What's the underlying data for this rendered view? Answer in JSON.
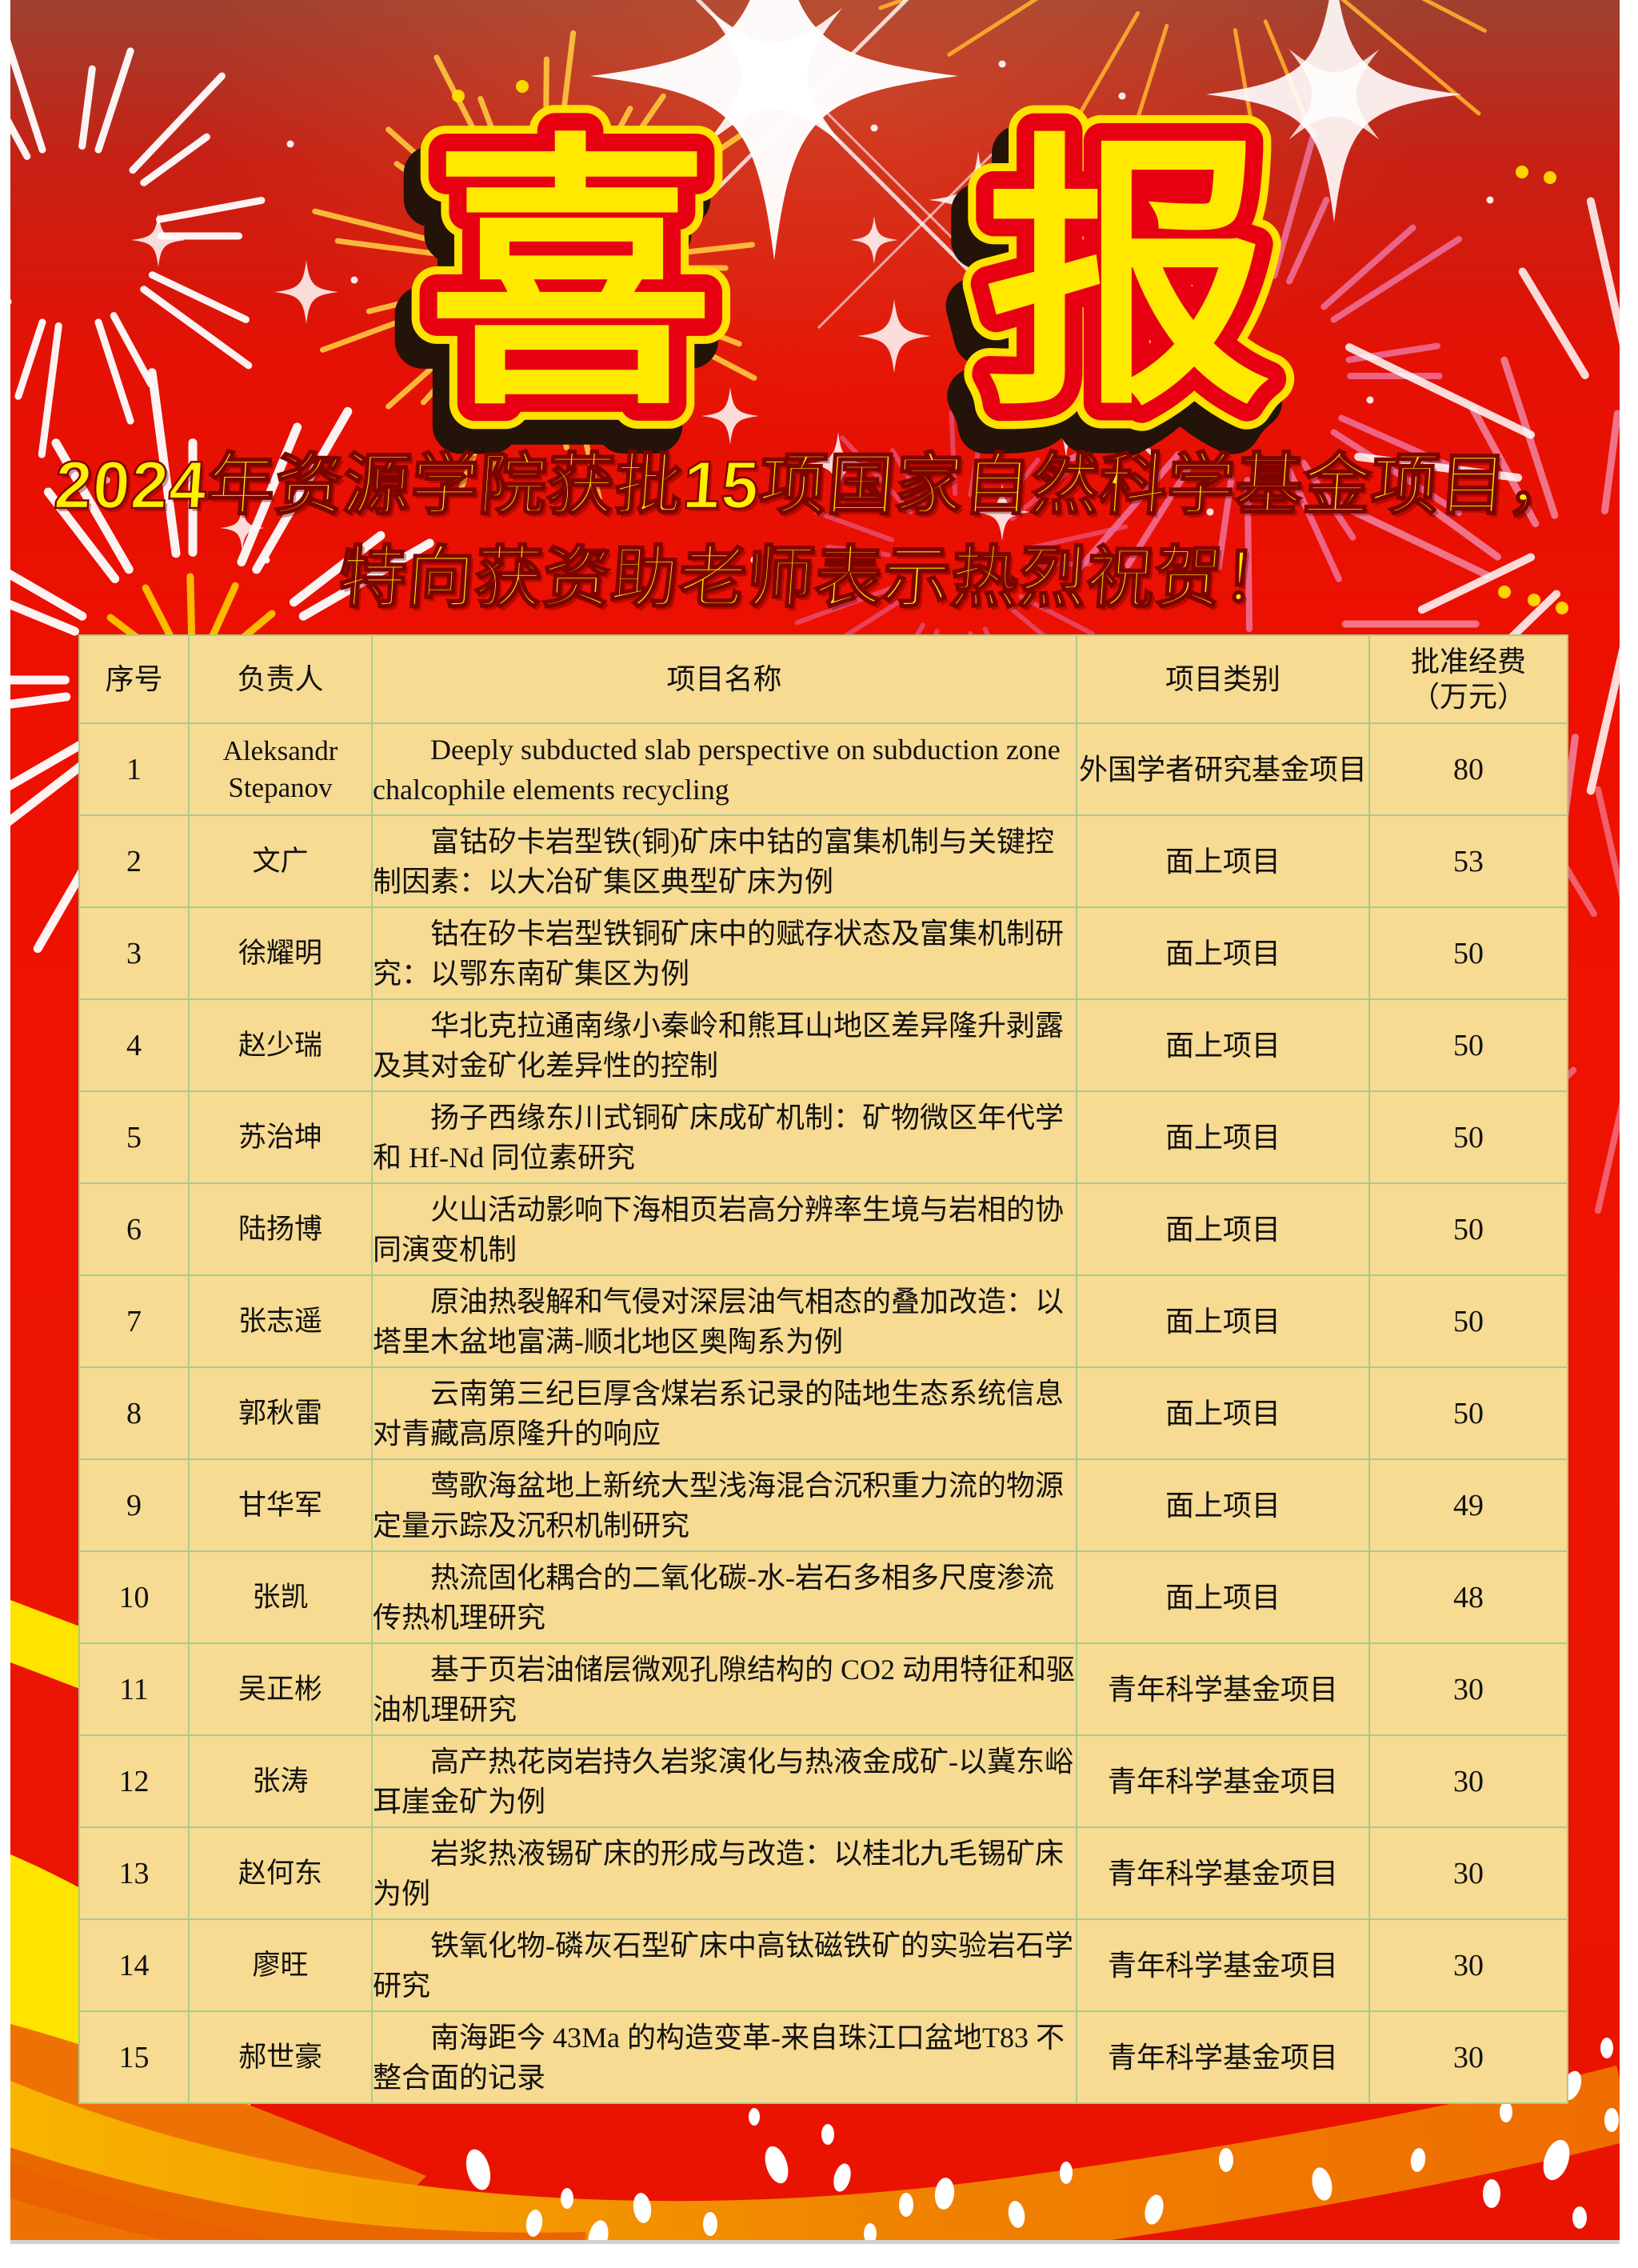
{
  "poster": {
    "title_chars": [
      "喜",
      "报"
    ],
    "subtitle_line1": "2024年资源学院获批15项国家自然科学基金项目，",
    "subtitle_line2": "特向获资助老师表示热烈祝贺！"
  },
  "table": {
    "headers": {
      "no": "序号",
      "pi": "负责人",
      "title": "项目名称",
      "category": "项目类别",
      "funding1": "批准经费",
      "funding2": "（万元）"
    },
    "rows": [
      {
        "no": "1",
        "pi": "Aleksandr Stepanov",
        "title": "Deeply subducted slab perspective on subduction zone chalcophile elements recycling",
        "category": "外国学者研究基金项目",
        "funding": "80"
      },
      {
        "no": "2",
        "pi": "文广",
        "title": "富钴矽卡岩型铁(铜)矿床中钴的富集机制与关键控制因素：以大冶矿集区典型矿床为例",
        "category": "面上项目",
        "funding": "53"
      },
      {
        "no": "3",
        "pi": "徐耀明",
        "title": "钴在矽卡岩型铁铜矿床中的赋存状态及富集机制研究：以鄂东南矿集区为例",
        "category": "面上项目",
        "funding": "50"
      },
      {
        "no": "4",
        "pi": "赵少瑞",
        "title": "华北克拉通南缘小秦岭和熊耳山地区差异隆升剥露及其对金矿化差异性的控制",
        "category": "面上项目",
        "funding": "50"
      },
      {
        "no": "5",
        "pi": "苏治坤",
        "title": "扬子西缘东川式铜矿床成矿机制：矿物微区年代学和 Hf-Nd 同位素研究",
        "category": "面上项目",
        "funding": "50"
      },
      {
        "no": "6",
        "pi": "陆扬博",
        "title": "火山活动影响下海相页岩高分辨率生境与岩相的协同演变机制",
        "category": "面上项目",
        "funding": "50"
      },
      {
        "no": "7",
        "pi": "张志遥",
        "title": "原油热裂解和气侵对深层油气相态的叠加改造：以塔里木盆地富满-顺北地区奥陶系为例",
        "category": "面上项目",
        "funding": "50"
      },
      {
        "no": "8",
        "pi": "郭秋雷",
        "title": "云南第三纪巨厚含煤岩系记录的陆地生态系统信息对青藏高原隆升的响应",
        "category": "面上项目",
        "funding": "50"
      },
      {
        "no": "9",
        "pi": "甘华军",
        "title": "莺歌海盆地上新统大型浅海混合沉积重力流的物源定量示踪及沉积机制研究",
        "category": "面上项目",
        "funding": "49"
      },
      {
        "no": "10",
        "pi": "张凯",
        "title": "热流固化耦合的二氧化碳-水-岩石多相多尺度渗流传热机理研究",
        "category": "面上项目",
        "funding": "48"
      },
      {
        "no": "11",
        "pi": "吴正彬",
        "title": "基于页岩油储层微观孔隙结构的 CO2 动用特征和驱油机理研究",
        "category": "青年科学基金项目",
        "funding": "30"
      },
      {
        "no": "12",
        "pi": "张涛",
        "title": "高产热花岗岩持久岩浆演化与热液金成矿-以冀东峪耳崖金矿为例",
        "category": "青年科学基金项目",
        "funding": "30"
      },
      {
        "no": "13",
        "pi": "赵何东",
        "title": "岩浆热液锡矿床的形成与改造：以桂北九毛锡矿床为例",
        "category": "青年科学基金项目",
        "funding": "30"
      },
      {
        "no": "14",
        "pi": "廖旺",
        "title": "铁氧化物-磷灰石型矿床中高钛磁铁矿的实验岩石学研究",
        "category": "青年科学基金项目",
        "funding": "30"
      },
      {
        "no": "15",
        "pi": "郝世豪",
        "title": "南海距今 43Ma 的构造变革-来自珠江口盆地T83 不整合面的记录",
        "category": "青年科学基金项目",
        "funding": "30"
      }
    ]
  },
  "colors": {
    "background_red": "#ee1000",
    "background_dark_top": "#9e4130",
    "title_fill_yellow": "#ffe900",
    "title_outline_red": "#e60012",
    "title_shadow_dark": "#231309",
    "banner_yellow": "#ffef00",
    "table_cell_tan": "#f7db92",
    "table_border_green": "#a6cc90",
    "swoosh_orange": "#ef7a00",
    "ribbon_yellow": "#ffe400",
    "page_margin_white": "#ffffff"
  }
}
